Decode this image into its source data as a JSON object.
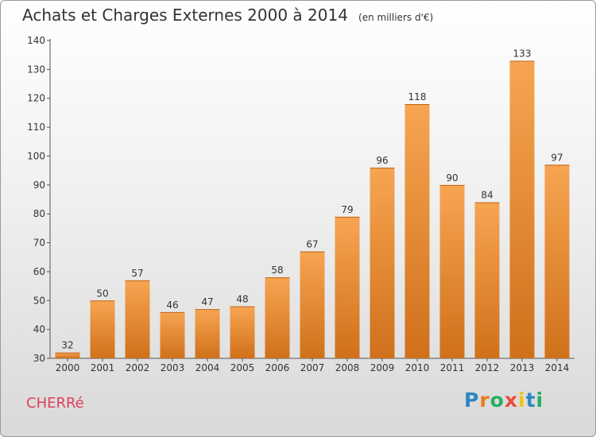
{
  "header": {
    "title": "Achats et Charges Externes 2000 à 2014",
    "unit": "(en milliers d'€)"
  },
  "commune": "CHERRé",
  "brand": {
    "text": "Proxiti",
    "letter_colors": [
      "#2e86c1",
      "#e67e22",
      "#27ae60",
      "#e74c3c",
      "#f1c40f",
      "#2e86c1",
      "#27ae60"
    ]
  },
  "chart_data": {
    "type": "bar",
    "title": "Achats et Charges Externes 2000 à 2014",
    "xlabel": "",
    "ylabel": "",
    "categories": [
      "2000",
      "2001",
      "2002",
      "2003",
      "2004",
      "2005",
      "2006",
      "2007",
      "2008",
      "2009",
      "2010",
      "2011",
      "2012",
      "2013",
      "2014"
    ],
    "values": [
      32,
      50,
      57,
      46,
      47,
      48,
      58,
      67,
      79,
      96,
      118,
      90,
      84,
      133,
      97
    ],
    "ylim": [
      30,
      140
    ],
    "yticks": [
      30,
      40,
      50,
      60,
      70,
      80,
      90,
      100,
      110,
      120,
      130,
      140
    ],
    "grid": false,
    "bar_color_top": "#f7a552",
    "bar_color_bottom": "#d0701a"
  }
}
